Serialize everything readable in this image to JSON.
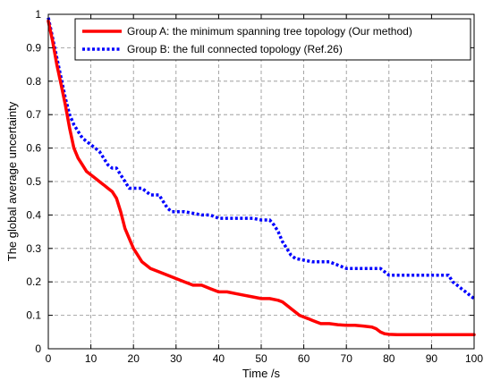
{
  "chart_data": {
    "type": "line",
    "xlabel": "Time /s",
    "ylabel": "The global average uncertainty",
    "xlim": [
      0,
      100
    ],
    "ylim": [
      0,
      1
    ],
    "x_ticks": [
      "0",
      "10",
      "20",
      "30",
      "40",
      "50",
      "60",
      "70",
      "80",
      "90",
      "100"
    ],
    "y_ticks": [
      "0",
      "0.1",
      "0.2",
      "0.3",
      "0.4",
      "0.5",
      "0.6",
      "0.7",
      "0.8",
      "0.9",
      "1"
    ],
    "grid": true,
    "legend_position": "top-right",
    "series": [
      {
        "name": "Group A: the minimum spanning tree topology (Our method)",
        "color": "#ff0000",
        "line_style": "solid",
        "x": [
          0,
          1,
          2,
          3,
          4,
          5,
          6,
          7,
          8,
          9,
          10,
          11,
          12,
          13,
          14,
          15,
          16,
          17,
          18,
          19,
          20,
          21,
          22,
          24,
          26,
          28,
          30,
          32,
          34,
          36,
          38,
          40,
          42,
          44,
          46,
          48,
          50,
          52,
          54,
          55,
          56,
          57,
          58,
          59,
          60,
          61,
          62,
          63,
          64,
          66,
          68,
          70,
          72,
          74,
          76,
          77,
          78,
          79,
          80,
          82,
          85,
          90,
          95,
          100
        ],
        "y": [
          0.98,
          0.92,
          0.85,
          0.79,
          0.73,
          0.66,
          0.6,
          0.57,
          0.55,
          0.53,
          0.52,
          0.51,
          0.5,
          0.49,
          0.48,
          0.47,
          0.45,
          0.41,
          0.36,
          0.33,
          0.3,
          0.28,
          0.26,
          0.24,
          0.23,
          0.22,
          0.21,
          0.2,
          0.19,
          0.19,
          0.18,
          0.17,
          0.17,
          0.165,
          0.16,
          0.155,
          0.15,
          0.15,
          0.145,
          0.14,
          0.13,
          0.12,
          0.11,
          0.1,
          0.095,
          0.09,
          0.085,
          0.08,
          0.075,
          0.075,
          0.072,
          0.07,
          0.07,
          0.068,
          0.065,
          0.06,
          0.05,
          0.045,
          0.043,
          0.042,
          0.042,
          0.042,
          0.042,
          0.042
        ]
      },
      {
        "name": "Group B: the full connected topology (Ref.26)",
        "color": "#0000ff",
        "line_style": "dotted",
        "x": [
          0,
          1,
          2,
          3,
          4,
          5,
          6,
          7,
          8,
          9,
          10,
          11,
          12,
          13,
          14,
          15,
          16,
          17,
          18,
          19,
          20,
          22,
          23,
          24,
          26,
          27,
          28,
          29,
          30,
          32,
          34,
          36,
          38,
          40,
          42,
          44,
          46,
          48,
          50,
          51,
          52,
          53,
          54,
          55,
          56,
          57,
          58,
          60,
          62,
          64,
          66,
          68,
          70,
          72,
          74,
          76,
          78,
          80,
          82,
          84,
          86,
          88,
          90,
          92,
          94,
          95,
          96,
          97,
          98,
          99,
          100
        ],
        "y": [
          0.99,
          0.93,
          0.87,
          0.81,
          0.75,
          0.7,
          0.67,
          0.65,
          0.63,
          0.62,
          0.61,
          0.6,
          0.59,
          0.57,
          0.55,
          0.54,
          0.54,
          0.52,
          0.5,
          0.48,
          0.48,
          0.48,
          0.47,
          0.46,
          0.46,
          0.44,
          0.42,
          0.41,
          0.41,
          0.41,
          0.405,
          0.4,
          0.4,
          0.39,
          0.39,
          0.39,
          0.39,
          0.39,
          0.385,
          0.385,
          0.385,
          0.37,
          0.35,
          0.32,
          0.3,
          0.28,
          0.27,
          0.265,
          0.26,
          0.26,
          0.26,
          0.25,
          0.24,
          0.24,
          0.24,
          0.24,
          0.24,
          0.22,
          0.22,
          0.22,
          0.22,
          0.22,
          0.22,
          0.22,
          0.22,
          0.2,
          0.19,
          0.18,
          0.17,
          0.16,
          0.15
        ]
      }
    ]
  }
}
